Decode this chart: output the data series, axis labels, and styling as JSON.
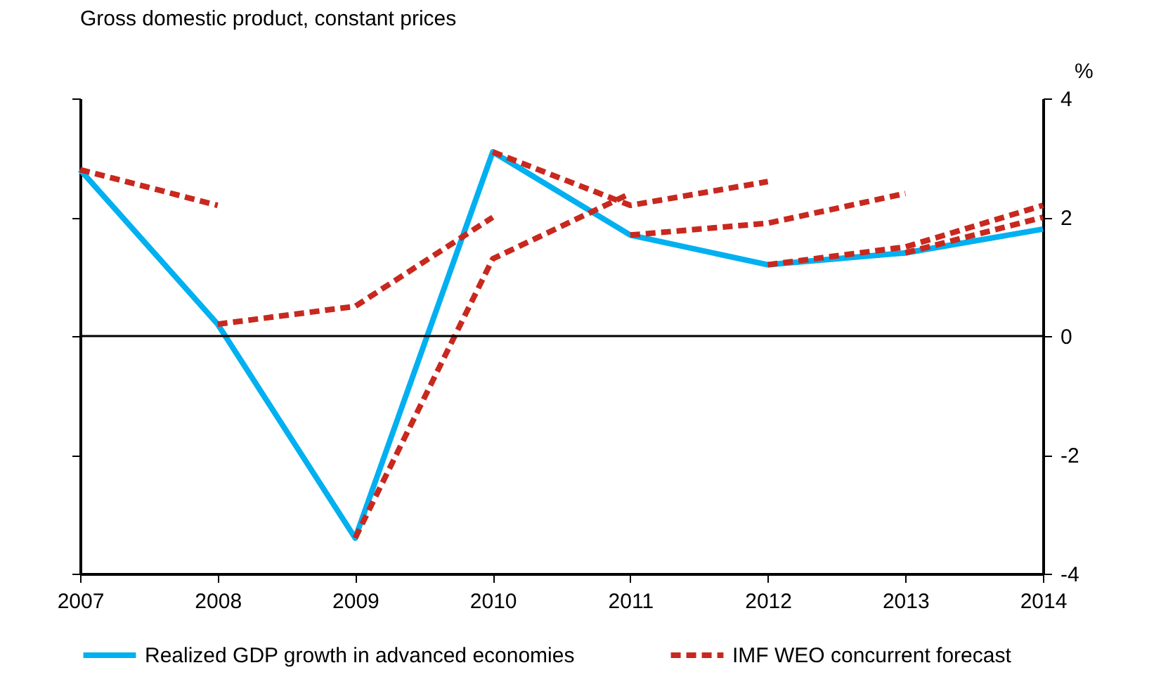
{
  "chart_data": {
    "type": "line",
    "title": "Gross domestic product, constant prices",
    "ylabel": "%",
    "x": [
      2007,
      2008,
      2009,
      2010,
      2011,
      2012,
      2013,
      2014
    ],
    "xlim": [
      2007,
      2014
    ],
    "xticks": [
      2007,
      2008,
      2009,
      2010,
      2011,
      2012,
      2013,
      2014
    ],
    "ylim": [
      -4,
      4
    ],
    "yticks": [
      -4,
      -2,
      0,
      2,
      4
    ],
    "ref_lines": [
      {
        "axis": "y",
        "value": 0,
        "color": "#000000"
      }
    ],
    "legend": "bottom",
    "grid": false,
    "marker": "none",
    "series": [
      {
        "name": "Realized GDP growth in advanced economies",
        "color": "#00b0f0",
        "line_style": "solid",
        "values": [
          2.8,
          0.2,
          -3.4,
          3.1,
          1.7,
          1.2,
          1.4,
          1.8
        ]
      },
      {
        "name": "IMF WEO concurrent forecast",
        "color": "#c8281e",
        "line_style": "dashed",
        "x": [
          2007,
          2008
        ],
        "values": [
          2.8,
          2.2
        ]
      },
      {
        "color": "#c8281e",
        "line_style": "dashed",
        "x": [
          2008,
          2009,
          2010
        ],
        "values": [
          0.2,
          0.5,
          2.0
        ]
      },
      {
        "color": "#c8281e",
        "line_style": "dashed",
        "x": [
          2009,
          2010,
          2011
        ],
        "values": [
          -3.4,
          1.3,
          2.4
        ]
      },
      {
        "color": "#c8281e",
        "line_style": "dashed",
        "x": [
          2010,
          2011,
          2012
        ],
        "values": [
          3.1,
          2.2,
          2.6
        ]
      },
      {
        "color": "#c8281e",
        "line_style": "dashed",
        "x": [
          2011,
          2012,
          2013
        ],
        "values": [
          1.7,
          1.9,
          2.4
        ]
      },
      {
        "color": "#c8281e",
        "line_style": "dashed",
        "x": [
          2012,
          2013,
          2014
        ],
        "values": [
          1.2,
          1.5,
          2.2
        ]
      },
      {
        "color": "#c8281e",
        "line_style": "dashed",
        "x": [
          2013,
          2014
        ],
        "values": [
          1.4,
          2.0
        ]
      }
    ]
  }
}
